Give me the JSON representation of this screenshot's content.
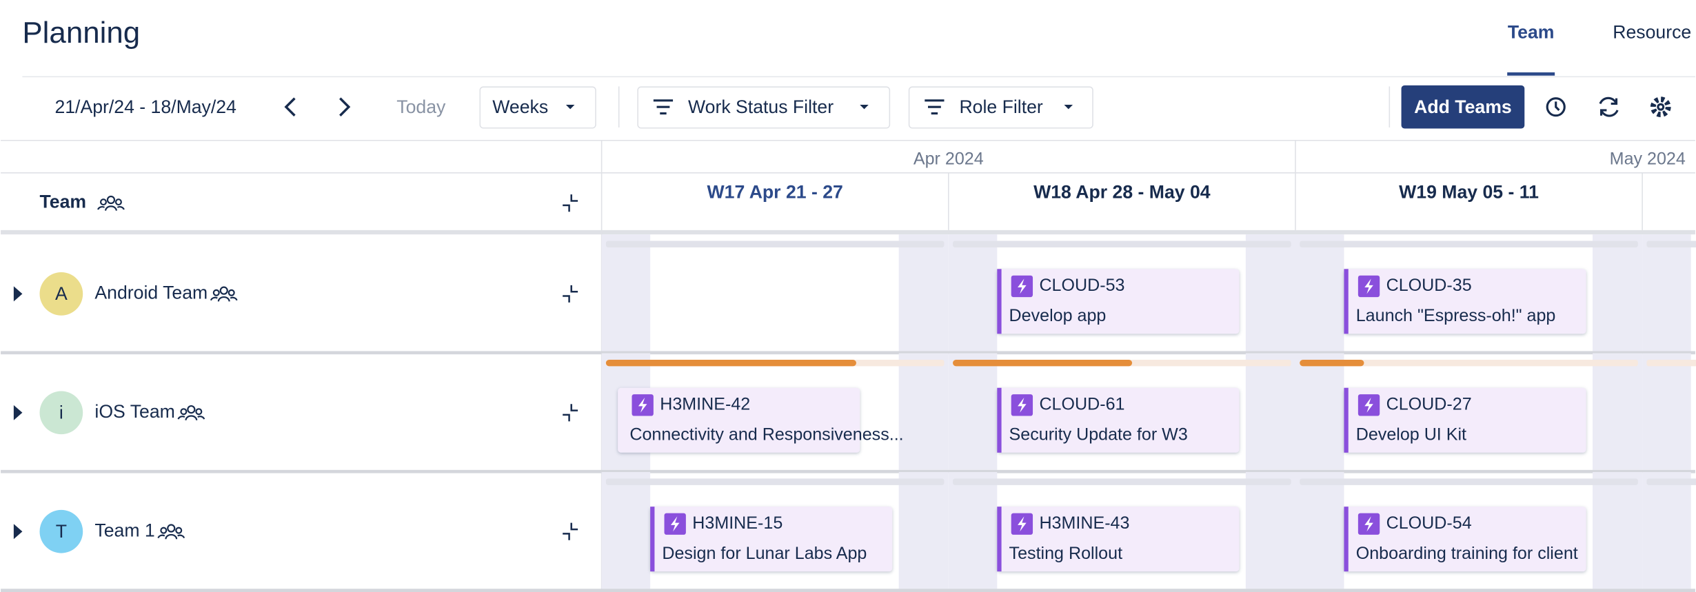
{
  "header": {
    "title": "Planning",
    "tabs": [
      "Team",
      "Resource"
    ]
  },
  "toolbar": {
    "date_range": "21/Apr/24 - 18/May/24",
    "today": "Today",
    "view": "Weeks",
    "filters": [
      "Work Status Filter",
      "Role Filter"
    ],
    "add_button": "Add Teams"
  },
  "timeline": {
    "months": [
      "Apr 2024",
      "May 2024"
    ],
    "weeks": [
      "W17 Apr 21 - 27",
      "W18 Apr 28 - May 04",
      "W19 May 05 - 11"
    ]
  },
  "team_column": {
    "header": "Team"
  },
  "teams": [
    {
      "initial": "A",
      "name": "Android Team",
      "cards": [
        null,
        {
          "key": "CLOUD-53",
          "summary": "Develop app"
        },
        {
          "key": "CLOUD-35",
          "summary": "Launch \"Espress-oh!\" app"
        }
      ]
    },
    {
      "initial": "i",
      "name": "iOS Team",
      "load": [
        74,
        53,
        19
      ],
      "cards": [
        {
          "key": "H3MINE-42",
          "summary": "Connectivity and Responsiveness..."
        },
        {
          "key": "CLOUD-61",
          "summary": "Security Update for W3"
        },
        {
          "key": "CLOUD-27",
          "summary": "Develop UI Kit"
        }
      ]
    },
    {
      "initial": "T",
      "name": "Team 1",
      "cards": [
        {
          "key": "H3MINE-15",
          "summary": "Design for Lunar Labs App"
        },
        {
          "key": "H3MINE-43",
          "summary": "Testing Rollout"
        },
        {
          "key": "CLOUD-54",
          "summary": "Onboarding training for client"
        }
      ]
    }
  ]
}
